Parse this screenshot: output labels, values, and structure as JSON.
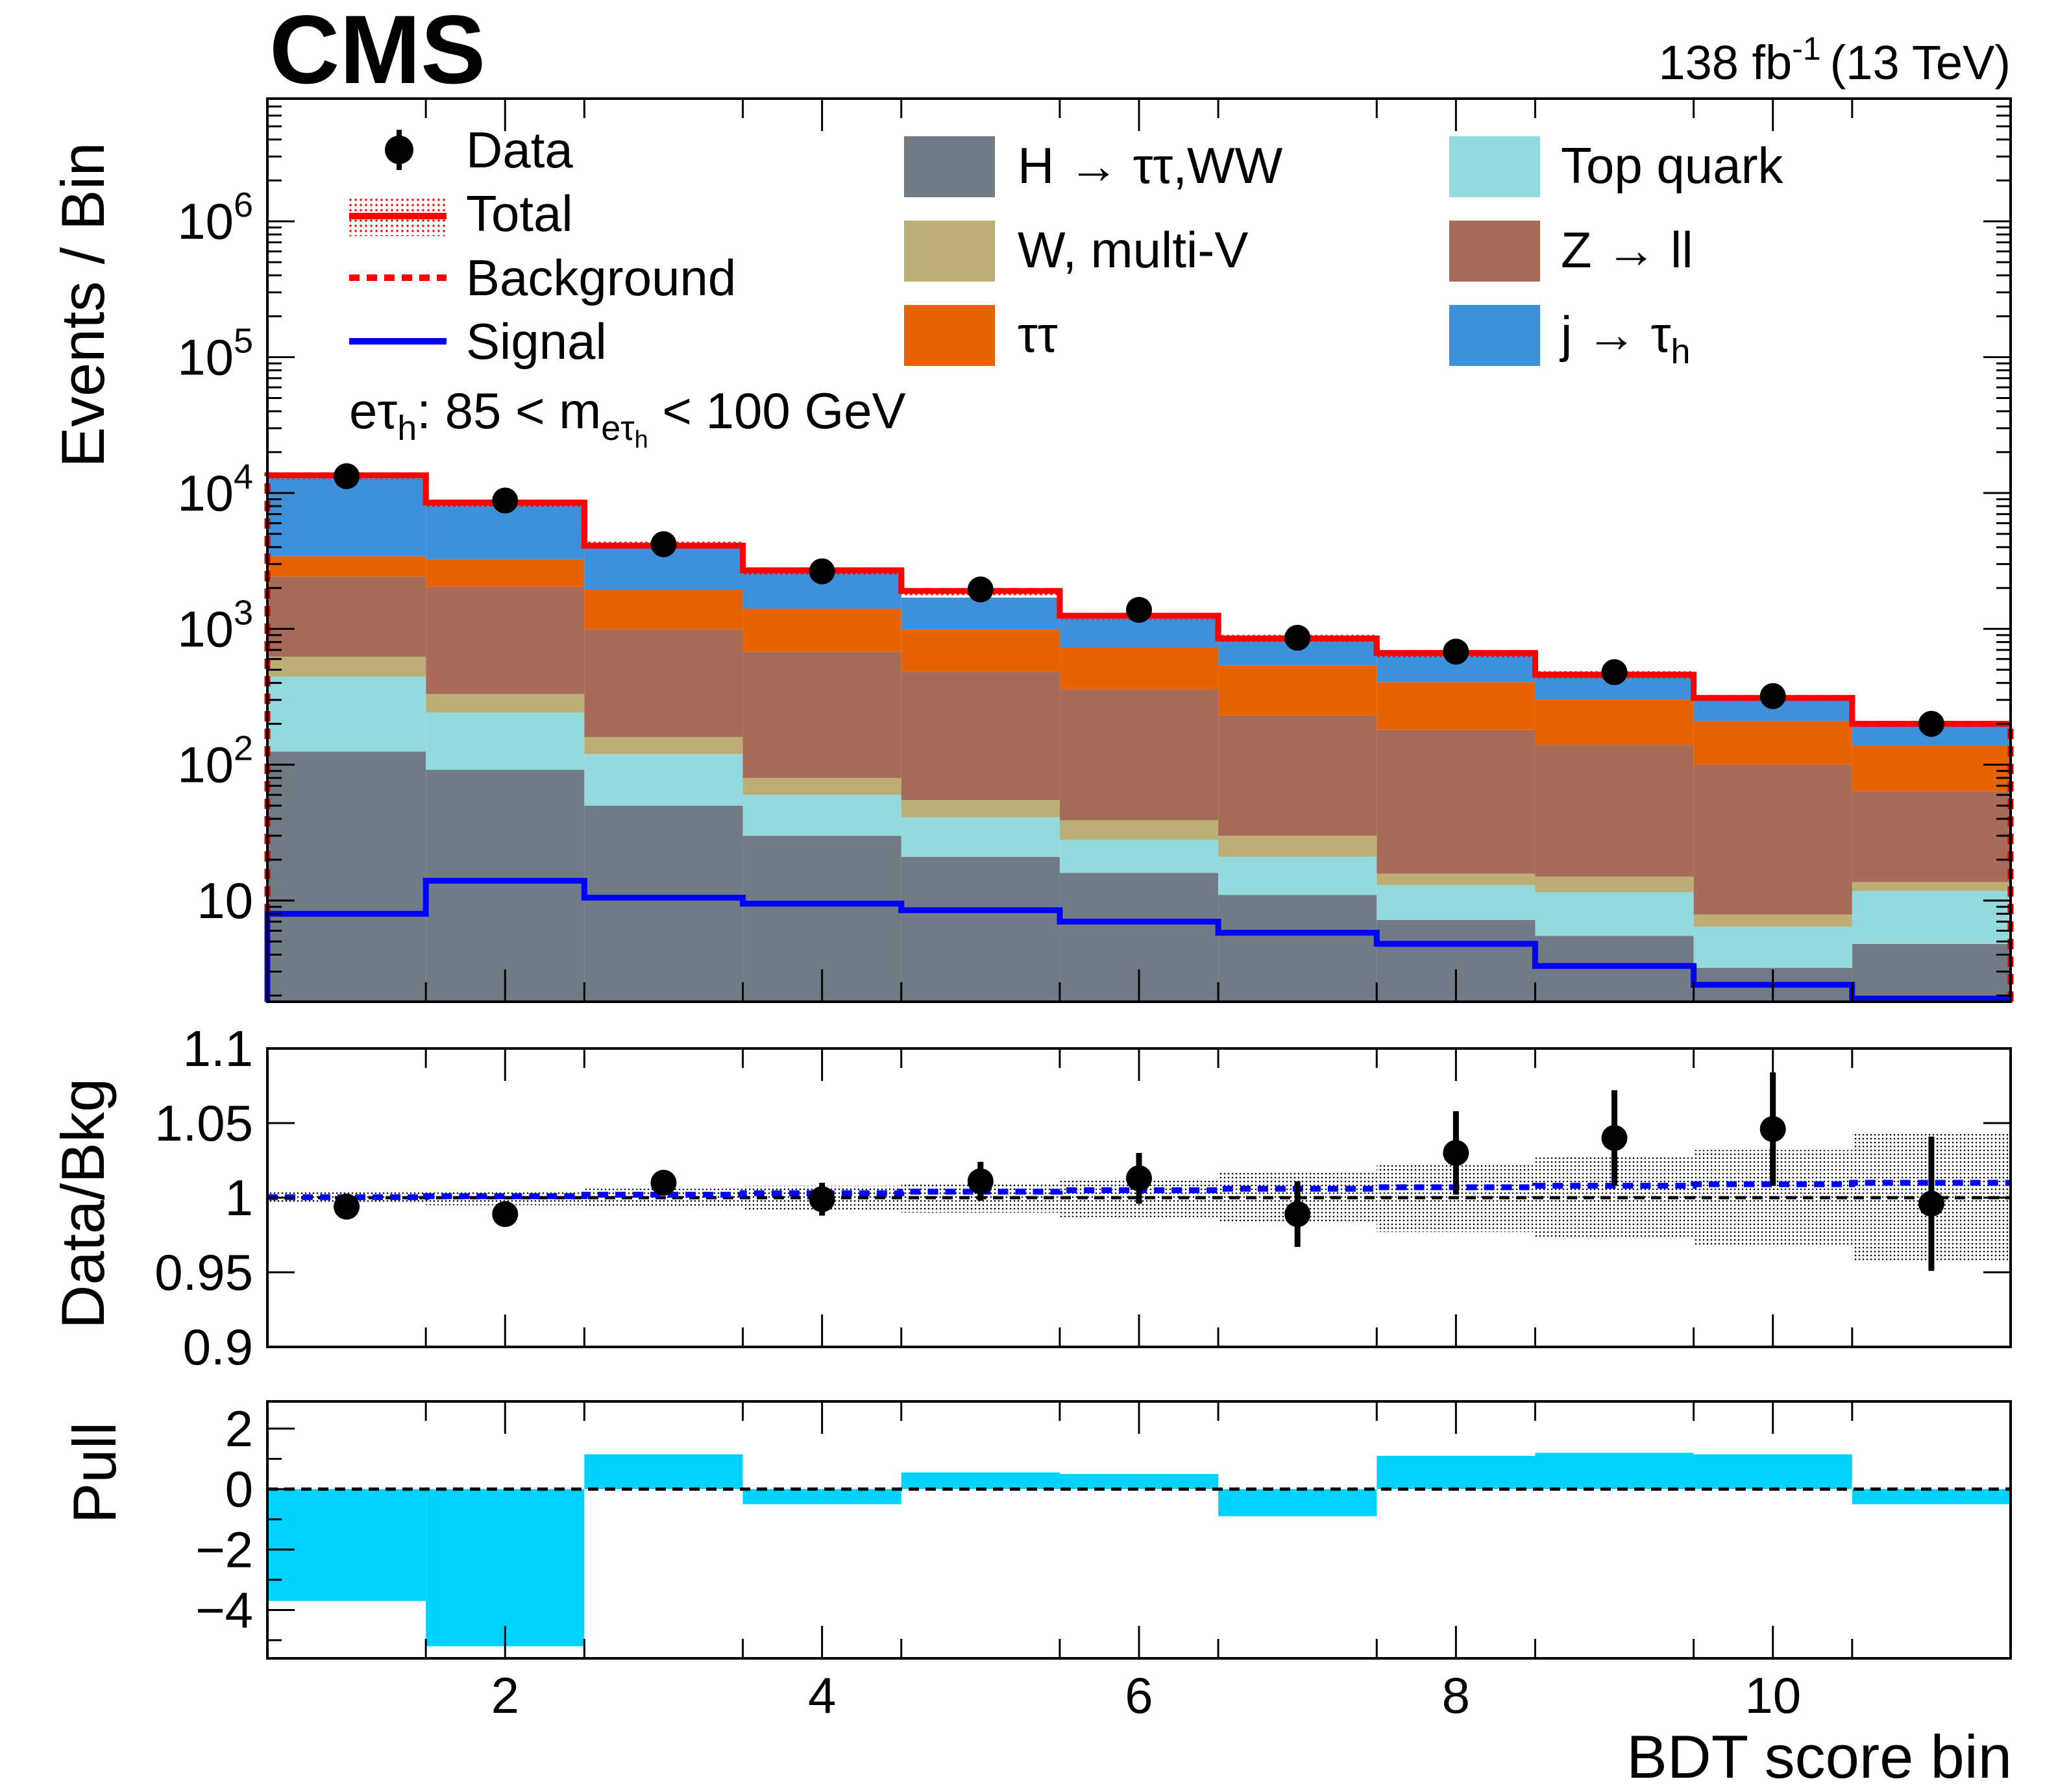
{
  "header": {
    "experiment": "CMS",
    "lumi": "138 fb",
    "lumi_sup": "-1",
    "energy": "(13 TeV)"
  },
  "region": {
    "prefix": "eτ",
    "prefix_sub": "h",
    "mid": ": 85 < m",
    "m_sub": "eτ",
    "m_subsub": "h",
    "suffix": " < 100 GeV"
  },
  "legend": {
    "data": "Data",
    "total": "Total",
    "background": "Background",
    "signal": "Signal"
  },
  "colors": {
    "htt_ww": "#717b86",
    "w_multiv": "#bcae77",
    "tautau": "#e76300",
    "top": "#94d9dd",
    "zll": "#a96b59",
    "jfake": "#3f90da",
    "total": "#ff0000",
    "signal": "#0000ff",
    "pull": "#00d2ff"
  },
  "chart_data": [
    {
      "type": "bar",
      "stacked": true,
      "yscale": "log",
      "ylabel": "Events / Bin",
      "ylim": [
        1.8,
        8000000
      ],
      "yticks": [
        "10",
        "10^2",
        "10^3",
        "10^4",
        "10^5",
        "10^6"
      ],
      "x_edges": [
        0.5,
        1.5,
        2.5,
        3.5,
        4.5,
        5.5,
        6.5,
        7.5,
        8.5,
        9.5,
        10.5,
        11.5
      ],
      "series": [
        {
          "name": "H → ττ,WW",
          "key": "htt_ww",
          "values": [
            125,
            92,
            50,
            30,
            21,
            16,
            11,
            7.2,
            5.5,
            3.2,
            4.8
          ]
        },
        {
          "name": "Top quark",
          "key": "top",
          "values": [
            320,
            150,
            70,
            30,
            20,
            12,
            10,
            5.8,
            6,
            3.2,
            7
          ]
        },
        {
          "name": "W, multi-V",
          "key": "w_multiv",
          "values": [
            180,
            90,
            40,
            20,
            14,
            11,
            9,
            2.8,
            3.5,
            1.5,
            1.9
          ]
        },
        {
          "name": "Z → ll",
          "key": "zll",
          "values": [
            1800,
            1700,
            830,
            600,
            430,
            320,
            200,
            165,
            125,
            92,
            50
          ]
        },
        {
          "name": "ττ",
          "key": "tautau",
          "values": [
            1000,
            1200,
            950,
            730,
            500,
            370,
            310,
            225,
            160,
            110,
            75
          ]
        },
        {
          "name": "j → τh",
          "key": "jfake",
          "values": [
            10075,
            5268,
            2160,
            1270,
            715,
            521,
            310,
            259,
            160,
            100,
            62
          ]
        }
      ],
      "total": [
        13500,
        8500,
        4100,
        2700,
        1900,
        1250,
        850,
        665,
        460,
        310,
        200
      ],
      "signal": [
        8,
        14,
        10.5,
        9.5,
        8.5,
        7,
        5.8,
        4.8,
        3.3,
        2.4,
        1.9
      ],
      "data": {
        "name": "Data",
        "x": [
          1,
          2,
          3,
          4,
          5,
          6,
          7,
          8,
          9,
          10,
          11
        ],
        "values": [
          13300,
          8800,
          4200,
          2650,
          1950,
          1380,
          860,
          680,
          480,
          320,
          200
        ]
      }
    },
    {
      "type": "scatter",
      "ylabel": "Data/Bkg",
      "ylim": [
        0.9,
        1.1
      ],
      "yticks": [
        "0.9",
        "0.95",
        "1",
        "1.05",
        "1.1"
      ],
      "x": [
        1,
        2,
        3,
        4,
        5,
        6,
        7,
        8,
        9,
        10,
        11
      ],
      "ratio": [
        0.994,
        0.989,
        1.01,
        0.999,
        1.011,
        1.013,
        0.989,
        1.03,
        1.04,
        1.046,
        0.996
      ],
      "err": [
        0.003,
        0.004,
        0.008,
        0.011,
        0.013,
        0.017,
        0.022,
        0.028,
        0.032,
        0.038,
        0.045
      ],
      "band": [
        0.004,
        0.005,
        0.006,
        0.008,
        0.01,
        0.013,
        0.017,
        0.023,
        0.027,
        0.032,
        0.043
      ],
      "signal_ratio": [
        1.0003,
        1.001,
        1.002,
        1.003,
        1.004,
        1.005,
        1.006,
        1.007,
        1.008,
        1.009,
        1.01
      ]
    },
    {
      "type": "bar",
      "ylabel": "Pull",
      "xlabel": "BDT score bin",
      "ylim": [
        -5.6,
        2.9
      ],
      "yticks": [
        "−4",
        "−2",
        "0",
        "2"
      ],
      "xticks": [
        "2",
        "4",
        "6",
        "8",
        "10"
      ],
      "values": [
        -3.7,
        -5.2,
        1.15,
        -0.5,
        0.55,
        0.5,
        -0.9,
        1.1,
        1.2,
        1.15,
        -0.5
      ]
    }
  ]
}
